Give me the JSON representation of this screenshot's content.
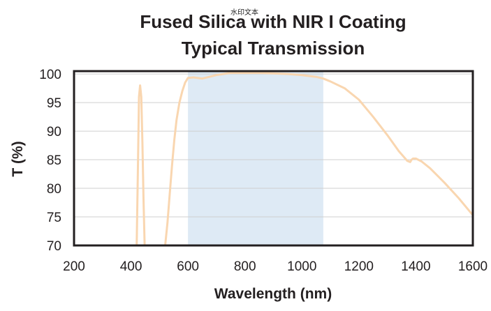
{
  "chart_data": {
    "type": "line",
    "title": "Fused Silica with NIR I Coating",
    "subtitle": "Typical Transmission",
    "watermark": "水印文本",
    "xlabel": "Wavelength (nm)",
    "ylabel": "T (%)",
    "xlim": [
      200,
      1600
    ],
    "ylim": [
      70,
      100.5
    ],
    "x_ticks": [
      "200",
      "400",
      "600",
      "800",
      "1000",
      "1200",
      "1400",
      "1600"
    ],
    "y_ticks": [
      "70",
      "75",
      "80",
      "85",
      "90",
      "95",
      "100"
    ],
    "grid": "horizontal",
    "highlight_band": {
      "x": [
        600,
        1075
      ],
      "color": "#deeaf5"
    },
    "line_color": "#f9d6b0",
    "series": [
      {
        "segments": [
          {
            "x": [
              420,
              424,
              428,
              432,
              436,
              440,
              444,
              448
            ],
            "y": [
              70,
              83,
              96,
              98,
              96,
              88,
              78,
              70
            ]
          },
          {
            "x": [
              520,
              528,
              536,
              544,
              552,
              560,
              570,
              580,
              590,
              600,
              620,
              650,
              700,
              750,
              800,
              850,
              900,
              950,
              1000,
              1050,
              1075,
              1100,
              1150,
              1200,
              1250,
              1300,
              1340,
              1370,
              1380,
              1385,
              1390,
              1400,
              1420,
              1450,
              1500,
              1550,
              1600
            ],
            "y": [
              70,
              74,
              79,
              84,
              88.5,
              92,
              95,
              97,
              98.5,
              99.3,
              99.4,
              99.2,
              99.8,
              100.2,
              100.2,
              100.2,
              100.1,
              100,
              99.8,
              99.5,
              99.2,
              98.7,
              97.5,
              95.5,
              92.5,
              89.3,
              86.5,
              84.8,
              84.6,
              85,
              85.2,
              85.2,
              84.7,
              83.5,
              81,
              78.3,
              75.3
            ]
          }
        ]
      }
    ]
  }
}
